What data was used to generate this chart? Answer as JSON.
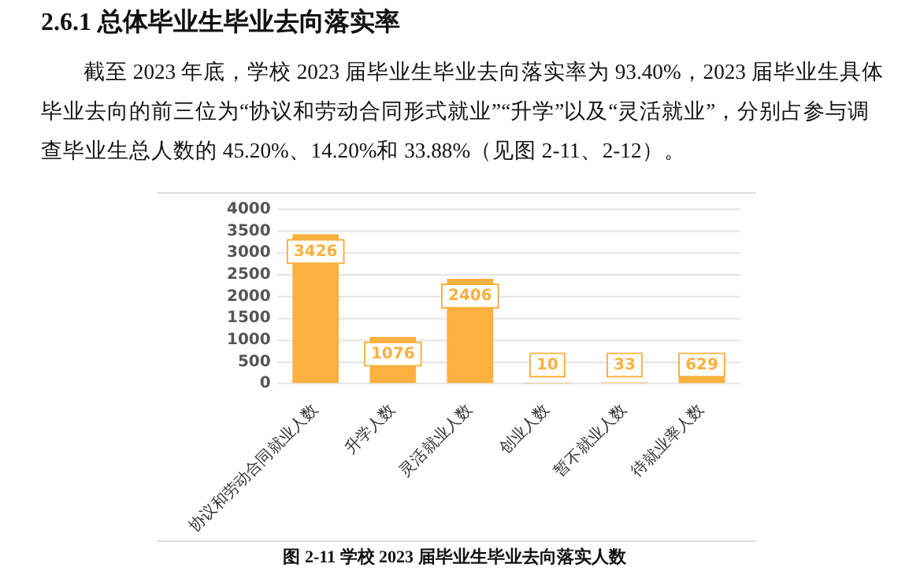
{
  "chart_data": {
    "type": "bar",
    "title": "2.6.1 总体毕业生毕业去向落实率",
    "subtitle": "截至 2023 年底，学校 2023 届毕业生毕业去向落实率为 93.40%，2023 届毕业生具体毕业去向的前三位为“协议和劳动合同形式就业”“升学”以及“灵活就业”，分别占参与调查毕业生总人数的 45.20%、14.20%和 33.88%（见图 2-11、2-12）。",
    "annotations": [
      "图  2-11  学校 2023 届毕业生毕业去向落实人数"
    ],
    "categories": [
      "协议和劳动合同就业人数",
      "升学人数",
      "灵活就业人数",
      "创业人数",
      "暂不就业人数",
      "待就业率人数"
    ],
    "values": [
      3426,
      1076,
      2406,
      10,
      33,
      629
    ],
    "color": "#fbb040",
    "ylim": [
      0,
      4000
    ],
    "yticks": [
      0,
      500,
      1000,
      1500,
      2000,
      2500,
      3000,
      3500,
      4000
    ],
    "grid": "y",
    "legend": false,
    "data_labels": true
  }
}
